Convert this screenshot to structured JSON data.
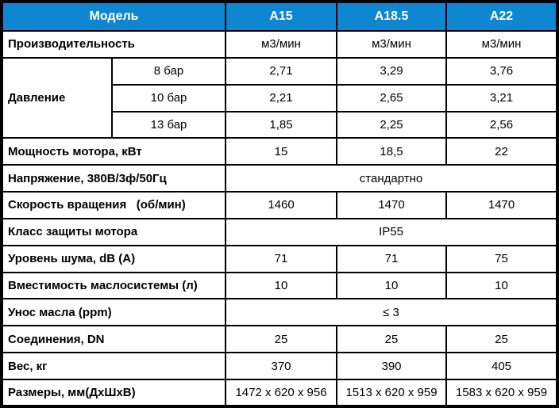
{
  "table": {
    "title_semantics": "compressor-specifications",
    "colors": {
      "header_bg": "#0e86d0",
      "header_text": "#ffffff",
      "border": "#000000"
    },
    "header": {
      "model_label": "Модель",
      "columns": [
        "A15",
        "A18.5",
        "A22"
      ]
    },
    "rows": {
      "capacity": {
        "label": "Производительность",
        "values": [
          "м3/мин",
          "м3/мин",
          "м3/мин"
        ]
      },
      "pressure": {
        "label": "Давление",
        "sub_rows": [
          {
            "label": "8 бар",
            "values": [
              "2,71",
              "3,29",
              "3,76"
            ]
          },
          {
            "label": "10 бар",
            "values": [
              "2,21",
              "2,65",
              "3,21"
            ]
          },
          {
            "label": "13 бар",
            "values": [
              "1,85",
              "2,25",
              "2,56"
            ]
          }
        ]
      },
      "motor_power": {
        "label": "Мощность мотора, кВт",
        "values": [
          "15",
          "18,5",
          "22"
        ]
      },
      "voltage": {
        "label": "Напряжение, 380В/3ф/50Гц",
        "value": "стандартно"
      },
      "rotation_speed": {
        "label": "Скорость вращения   (об/мин)",
        "values": [
          "1460",
          "1470",
          "1470"
        ]
      },
      "protection_class": {
        "label": "Класс защиты мотора",
        "value": "IP55"
      },
      "noise_level": {
        "label": "Уровень шума, dB (A)",
        "values": [
          "71",
          "71",
          "75"
        ]
      },
      "oil_system_capacity": {
        "label": "Вместимость маслосистемы (л)",
        "values": [
          "10",
          "10",
          "10"
        ]
      },
      "oil_carryover": {
        "label": "Унос масла (ppm)",
        "value": "≤ 3"
      },
      "connections": {
        "label": "Соединения, DN",
        "values": [
          "25",
          "25",
          "25"
        ]
      },
      "weight": {
        "label": "Вес, кг",
        "values": [
          "370",
          "390",
          "405"
        ]
      },
      "dimensions": {
        "label": "Размеры, мм(ДхШхВ)",
        "values": [
          "1472 x 620 x 956",
          "1513 x 620 x 959",
          "1583 x 620 x 959"
        ]
      }
    }
  }
}
